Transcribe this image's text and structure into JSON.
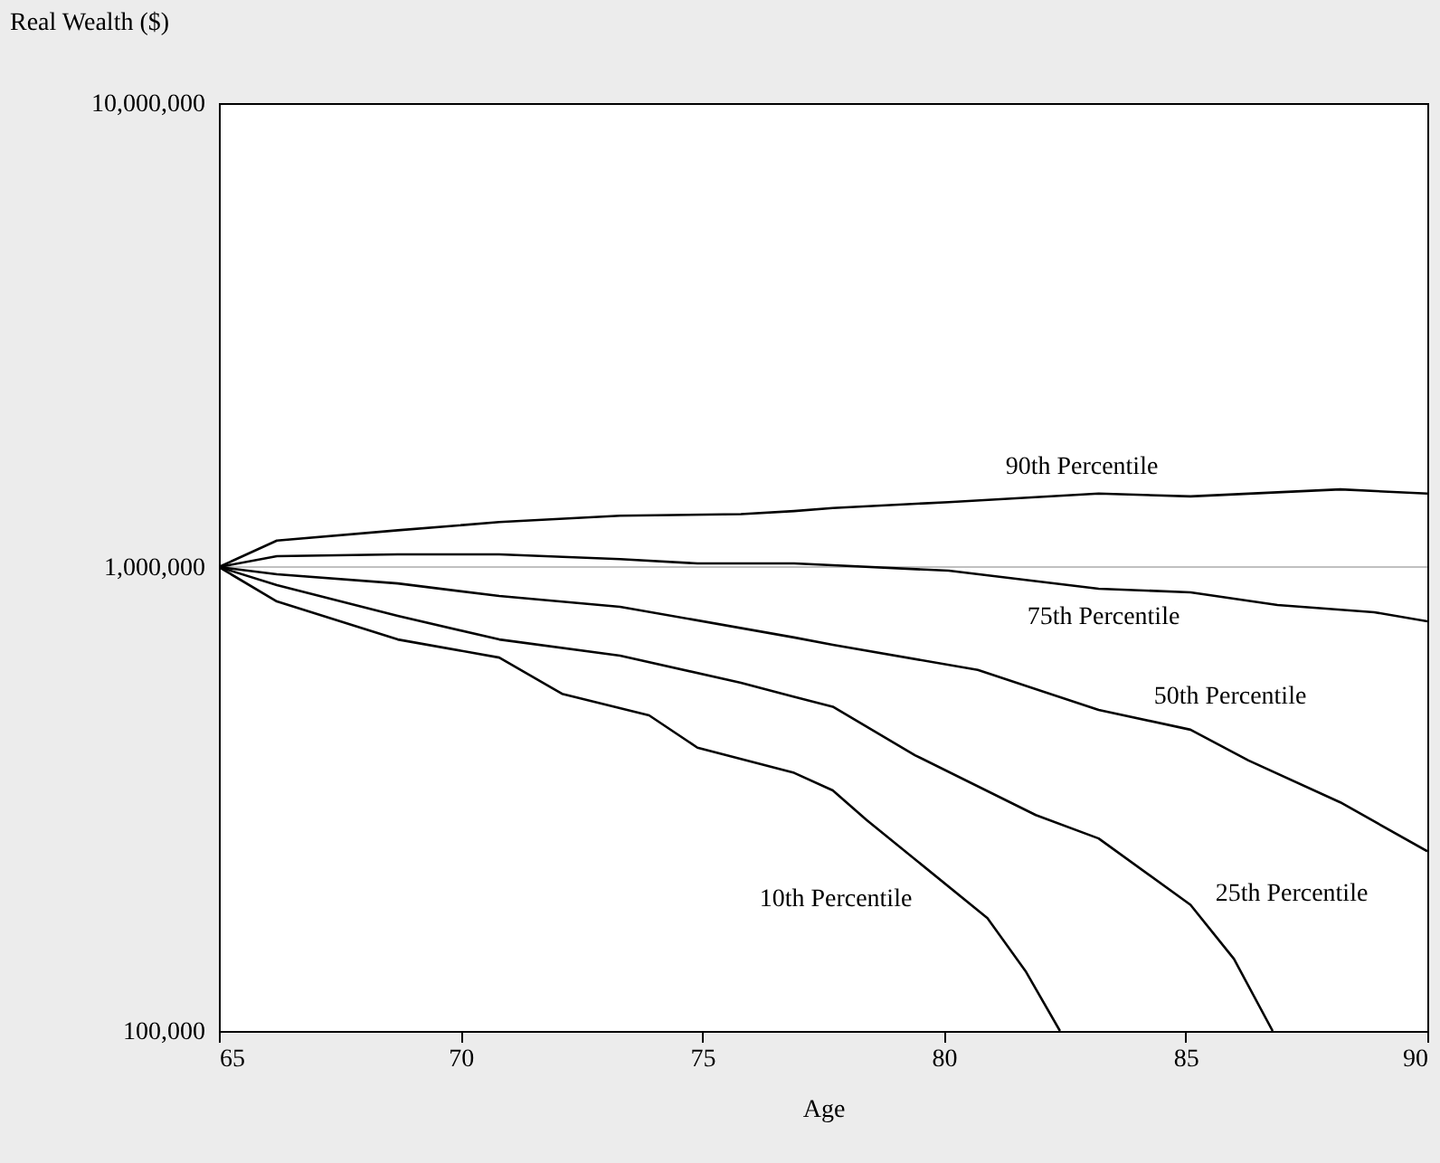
{
  "chart_data": {
    "type": "line",
    "xlabel": "Age",
    "ylabel": "Real Wealth ($)",
    "log": "y",
    "xlim": [
      65,
      90
    ],
    "xticks": [
      65,
      70,
      75,
      80,
      85,
      90
    ],
    "ylim": [
      100000,
      10000000
    ],
    "yticks": [
      {
        "value": 100000,
        "label": "100,000"
      },
      {
        "value": 1000000,
        "label": "1,000,000"
      },
      {
        "value": 10000000,
        "label": "10,000,000"
      }
    ],
    "grid": false,
    "legend": false,
    "marker": "none",
    "line_style": "solid",
    "ref_lines": [
      {
        "axis": "y",
        "value": 1000000,
        "color": "#c0c0c0"
      }
    ],
    "series": [
      {
        "name": "90th Percentile",
        "color": "#000000",
        "x": [
          65,
          66.2,
          68.7,
          70.8,
          73.3,
          75.8,
          76.9,
          77.7,
          80.1,
          83.2,
          85.1,
          88.2,
          90
        ],
        "values": [
          1000000,
          1140000,
          1200000,
          1250000,
          1290000,
          1300000,
          1320000,
          1340000,
          1380000,
          1440000,
          1420000,
          1470000,
          1440000
        ]
      },
      {
        "name": "75th Percentile",
        "color": "#000000",
        "x": [
          65,
          66.2,
          68.7,
          70.8,
          73.3,
          74.9,
          76.9,
          77.7,
          80.1,
          83.2,
          85.1,
          86.9,
          88.9,
          90
        ],
        "values": [
          1000000,
          1055000,
          1065000,
          1065000,
          1040000,
          1018000,
          1018000,
          1009000,
          982000,
          898000,
          882000,
          828000,
          799000,
          764000
        ]
      },
      {
        "name": "50th Percentile",
        "color": "#000000",
        "x": [
          65,
          66.2,
          68.7,
          70.8,
          73.3,
          76.9,
          77.7,
          80.7,
          83.2,
          85.1,
          86.3,
          88.2,
          90
        ],
        "values": [
          1000000,
          965000,
          922000,
          866000,
          821000,
          705000,
          680000,
          600000,
          492000,
          446000,
          383000,
          311000,
          244000
        ]
      },
      {
        "name": "25th Percentile",
        "color": "#000000",
        "x": [
          65,
          66.2,
          68.7,
          70.8,
          73.3,
          75.8,
          76.9,
          77.7,
          79.4,
          81.9,
          83.2,
          85.1,
          86.0,
          86.8
        ],
        "values": [
          1000000,
          914000,
          785000,
          698000,
          644000,
          563000,
          525000,
          500000,
          393000,
          292000,
          260000,
          187000,
          143000,
          100000
        ]
      },
      {
        "name": "10th Percentile",
        "color": "#000000",
        "x": [
          65,
          66.2,
          68.7,
          70.8,
          72.1,
          73.9,
          74.9,
          76.9,
          77.7,
          78.4,
          80.9,
          81.7,
          82.4
        ],
        "values": [
          1000000,
          843000,
          698000,
          638000,
          533000,
          479000,
          408000,
          360000,
          330000,
          285000,
          175000,
          134000,
          100000
        ]
      }
    ]
  }
}
